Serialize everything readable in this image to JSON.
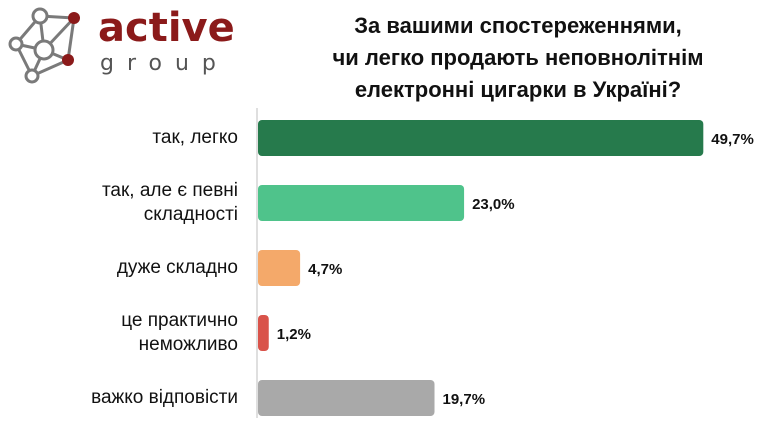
{
  "logo": {
    "name": "active",
    "sub": "group",
    "colors": {
      "dark_red": "#8b1a1a",
      "grey": "#7a7a7a"
    }
  },
  "chart_data": {
    "type": "bar",
    "orientation": "horizontal",
    "title_lines": [
      "За вашими спостереженнями,",
      "чи легко продають неповнолітнім",
      "електронні цигарки в Україні?"
    ],
    "categories": [
      [
        "так, легко"
      ],
      [
        "так, але є певні",
        "складності"
      ],
      [
        "дуже складно"
      ],
      [
        "це практично",
        "неможливо"
      ],
      [
        "важко відповісти"
      ]
    ],
    "values": [
      49.7,
      23.0,
      4.7,
      1.2,
      19.7
    ],
    "value_labels": [
      "49,7%",
      "23,0%",
      "4,7%",
      "1,2%",
      "19,7%"
    ],
    "colors": [
      "#267a4c",
      "#4fc38b",
      "#f4a96a",
      "#d9534a",
      "#a9a9a9"
    ],
    "xlim": [
      0,
      50
    ],
    "grid": false,
    "legend": "none"
  }
}
